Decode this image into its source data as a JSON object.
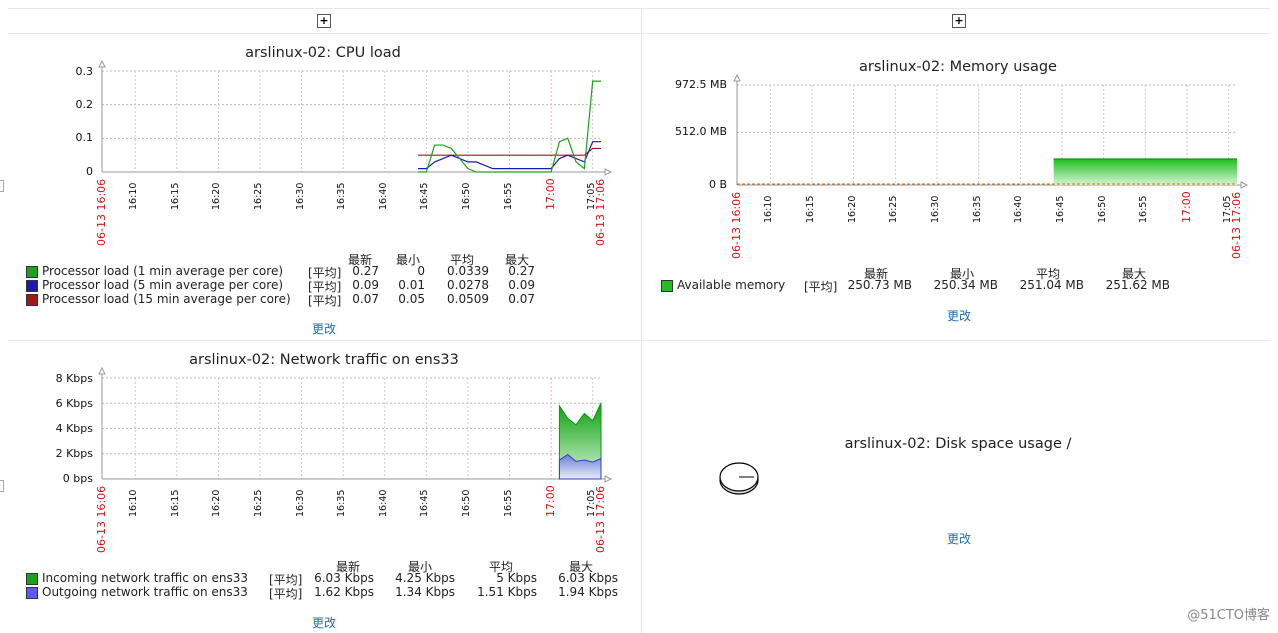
{
  "panels": {
    "add_label": "+",
    "edit_label": "更改"
  },
  "cpu": {
    "title": "arslinux-02: CPU load",
    "yticks": [
      "0.3",
      "0.2",
      "0.1",
      "0"
    ],
    "xticks": [
      "16:10",
      "16:15",
      "16:20",
      "16:25",
      "16:30",
      "16:35",
      "16:40",
      "16:45",
      "16:50",
      "16:55",
      "17:00",
      "17:05"
    ],
    "x_start": "06-13 16:06",
    "x_end": "06-13 17:06",
    "headers": [
      "最新",
      "最小",
      "平均",
      "最大"
    ],
    "rows": [
      {
        "label": "Processor load (1 min average per core)",
        "func": "[平均]",
        "vals": [
          "0.27",
          "0",
          "0.0339",
          "0.27"
        ],
        "color": "#1aa31a"
      },
      {
        "label": "Processor load (5 min average per core)",
        "func": "[平均]",
        "vals": [
          "0.09",
          "0.01",
          "0.0278",
          "0.09"
        ],
        "color": "#1a1ab0"
      },
      {
        "label": "Processor load (15 min average per core)",
        "func": "[平均]",
        "vals": [
          "0.07",
          "0.05",
          "0.0509",
          "0.07"
        ],
        "color": "#a01a1a"
      }
    ]
  },
  "memory": {
    "title": "arslinux-02: Memory usage",
    "yticks": [
      "972.5 MB",
      "512.0 MB",
      "0 B"
    ],
    "xticks": [
      "16:10",
      "16:15",
      "16:20",
      "16:25",
      "16:30",
      "16:35",
      "16:40",
      "16:45",
      "16:50",
      "16:55",
      "17:00",
      "17:05"
    ],
    "x_start": "06-13 16:06",
    "x_end": "06-13 17:06",
    "headers": [
      "最新",
      "最小",
      "平均",
      "最大"
    ],
    "rows": [
      {
        "label": "Available memory",
        "func": "[平均]",
        "vals": [
          "250.73 MB",
          "250.34 MB",
          "251.04 MB",
          "251.62 MB"
        ],
        "color": "#22c022"
      }
    ]
  },
  "network": {
    "title": "arslinux-02: Network traffic on ens33",
    "yticks": [
      "8 Kbps",
      "6 Kbps",
      "4 Kbps",
      "2 Kbps",
      "0 bps"
    ],
    "xticks": [
      "16:10",
      "16:15",
      "16:20",
      "16:25",
      "16:30",
      "16:35",
      "16:40",
      "16:45",
      "16:50",
      "16:55",
      "17:00",
      "17:05"
    ],
    "x_start": "06-13 16:06",
    "x_end": "06-13 17:06",
    "headers": [
      "最新",
      "最小",
      "平均",
      "最大"
    ],
    "rows": [
      {
        "label": "Incoming network traffic on ens33",
        "func": "[平均]",
        "vals": [
          "6.03 Kbps",
          "4.25 Kbps",
          "5 Kbps",
          "6.03 Kbps"
        ],
        "color": "#1aa31a"
      },
      {
        "label": "Outgoing network traffic on ens33",
        "func": "[平均]",
        "vals": [
          "1.62 Kbps",
          "1.34 Kbps",
          "1.51 Kbps",
          "1.94 Kbps"
        ],
        "color": "#5a5aff"
      }
    ]
  },
  "disk": {
    "title": "arslinux-02: Disk space usage /"
  },
  "watermark": "@51CTO博客",
  "chart_data": [
    {
      "type": "line",
      "title": "arslinux-02: CPU load",
      "ylim": [
        0,
        0.3
      ],
      "x": [
        "16:44",
        "16:45",
        "16:46",
        "16:47",
        "16:48",
        "16:49",
        "16:50",
        "16:51",
        "16:52",
        "16:53",
        "16:54",
        "16:55",
        "16:56",
        "16:57",
        "16:58",
        "16:59",
        "17:00",
        "17:01",
        "17:02",
        "17:03",
        "17:04",
        "17:05",
        "17:06"
      ],
      "series": [
        {
          "name": "Processor load (1 min average per core)",
          "color": "#1aa31a",
          "values": [
            0.0,
            0.0,
            0.08,
            0.08,
            0.07,
            0.04,
            0.01,
            0.0,
            0.0,
            0.0,
            0.0,
            0.0,
            0.0,
            0.0,
            0.0,
            0.0,
            0.0,
            0.09,
            0.1,
            0.03,
            0.01,
            0.27,
            0.27
          ]
        },
        {
          "name": "Processor load (5 min average per core)",
          "color": "#1a1ab0",
          "values": [
            0.01,
            0.01,
            0.03,
            0.04,
            0.05,
            0.04,
            0.03,
            0.03,
            0.02,
            0.01,
            0.01,
            0.01,
            0.01,
            0.01,
            0.01,
            0.01,
            0.01,
            0.04,
            0.05,
            0.04,
            0.03,
            0.09,
            0.09
          ]
        },
        {
          "name": "Processor load (15 min average per core)",
          "color": "#a01a1a",
          "values": [
            0.05,
            0.05,
            0.05,
            0.05,
            0.05,
            0.05,
            0.05,
            0.05,
            0.05,
            0.05,
            0.05,
            0.05,
            0.05,
            0.05,
            0.05,
            0.05,
            0.05,
            0.05,
            0.05,
            0.05,
            0.05,
            0.07,
            0.07
          ]
        }
      ]
    },
    {
      "type": "area",
      "title": "arslinux-02: Memory usage",
      "ylim": [
        0,
        972.5
      ],
      "x": [
        "16:44",
        "17:06"
      ],
      "series": [
        {
          "name": "Available memory",
          "color": "#22c022",
          "values": [
            251.04,
            251.04
          ]
        }
      ]
    },
    {
      "type": "area",
      "title": "arslinux-02: Network traffic on ens33",
      "ylim": [
        0,
        8
      ],
      "x": [
        "17:01",
        "17:02",
        "17:03",
        "17:04",
        "17:05",
        "17:06"
      ],
      "series": [
        {
          "name": "Incoming network traffic on ens33",
          "color": "#1aa31a",
          "values": [
            5.8,
            4.8,
            4.3,
            5.2,
            4.6,
            6.03
          ]
        },
        {
          "name": "Outgoing network traffic on ens33",
          "color": "#5a5aff",
          "values": [
            1.5,
            1.94,
            1.4,
            1.5,
            1.34,
            1.62
          ]
        }
      ]
    }
  ]
}
